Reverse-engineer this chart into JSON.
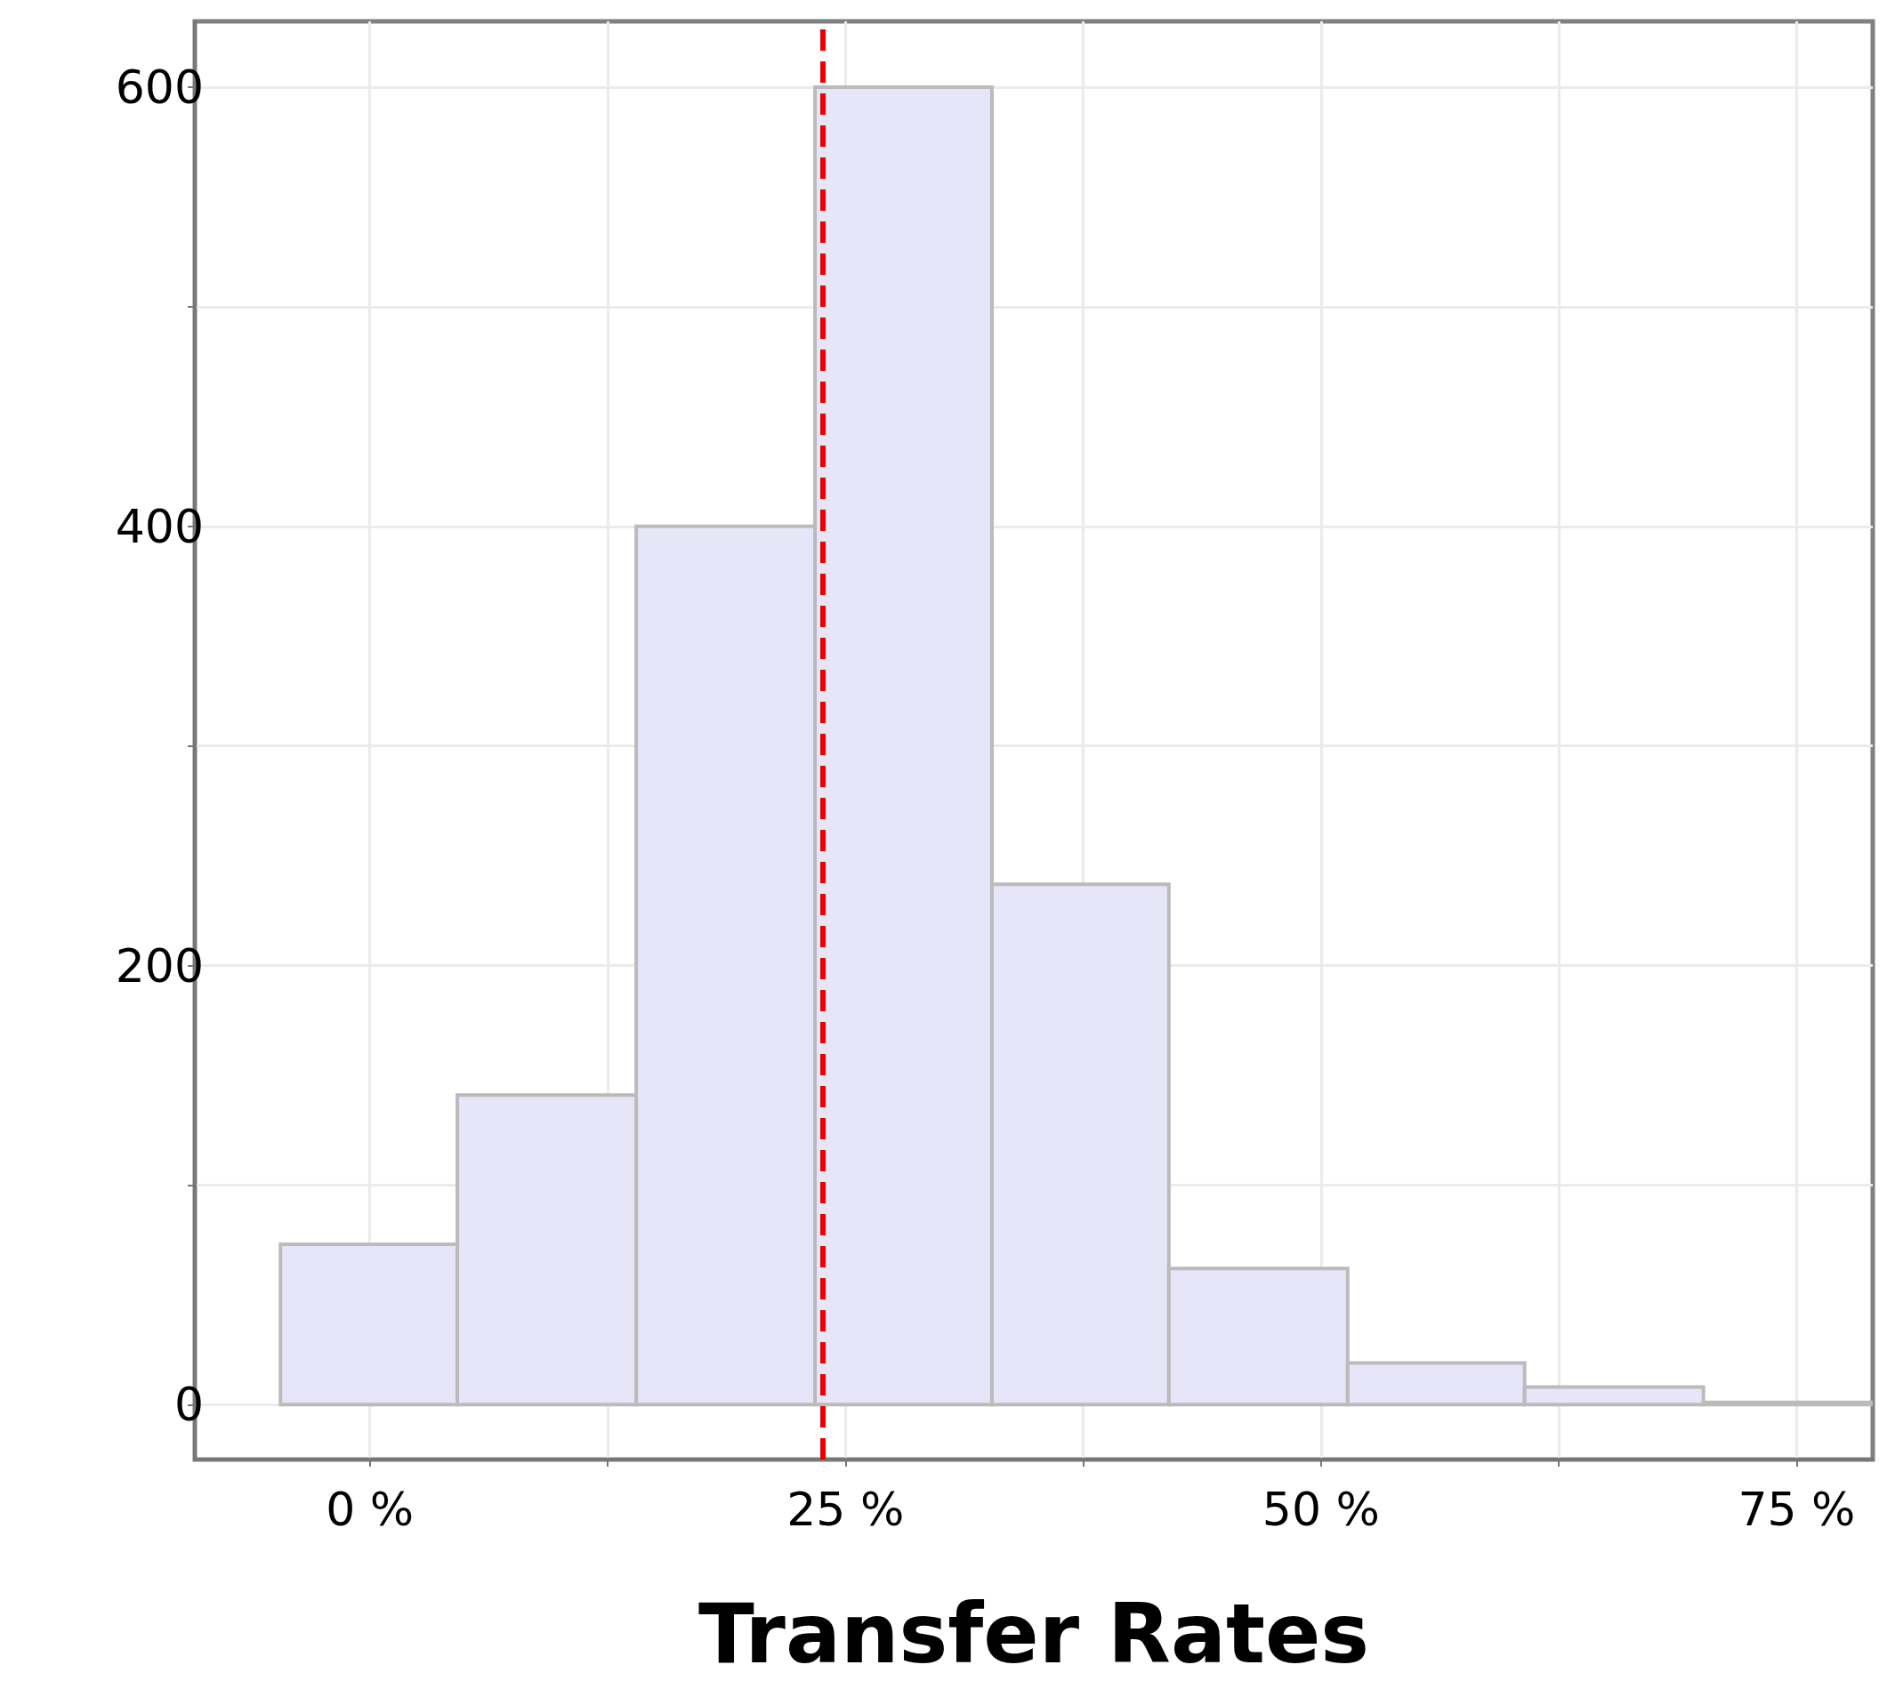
{
  "chart_data": {
    "type": "histogram",
    "xlabel": "Transfer Rates",
    "bins": [
      -4.7,
      4.6,
      14.0,
      23.4,
      32.7,
      42.0,
      51.4,
      60.7,
      70.1,
      79.0
    ],
    "values": [
      73,
      141,
      400,
      600,
      237,
      62,
      19,
      8,
      1
    ],
    "color": "#e6e6f8",
    "xlim": [
      -9.2,
      79
    ],
    "xticks": [
      {
        "value": 0,
        "label": "0 %"
      },
      {
        "value": 12.5,
        "label": null
      },
      {
        "value": 25,
        "label": "25 %"
      },
      {
        "value": 37.5,
        "label": null
      },
      {
        "value": 50,
        "label": "50 %"
      },
      {
        "value": 62.5,
        "label": null
      },
      {
        "value": 75,
        "label": "75 %"
      }
    ],
    "ylim": [
      -25,
      630
    ],
    "yticks": [
      0,
      {
        "value": 100,
        "label": null
      },
      200,
      {
        "value": 300,
        "label": null
      },
      400,
      {
        "value": 500,
        "label": null
      },
      600
    ],
    "ref_lines": [
      {
        "axis": "x",
        "value": 23.8,
        "color": "#ee0000",
        "line_style": "dashed"
      }
    ],
    "grid": true
  }
}
